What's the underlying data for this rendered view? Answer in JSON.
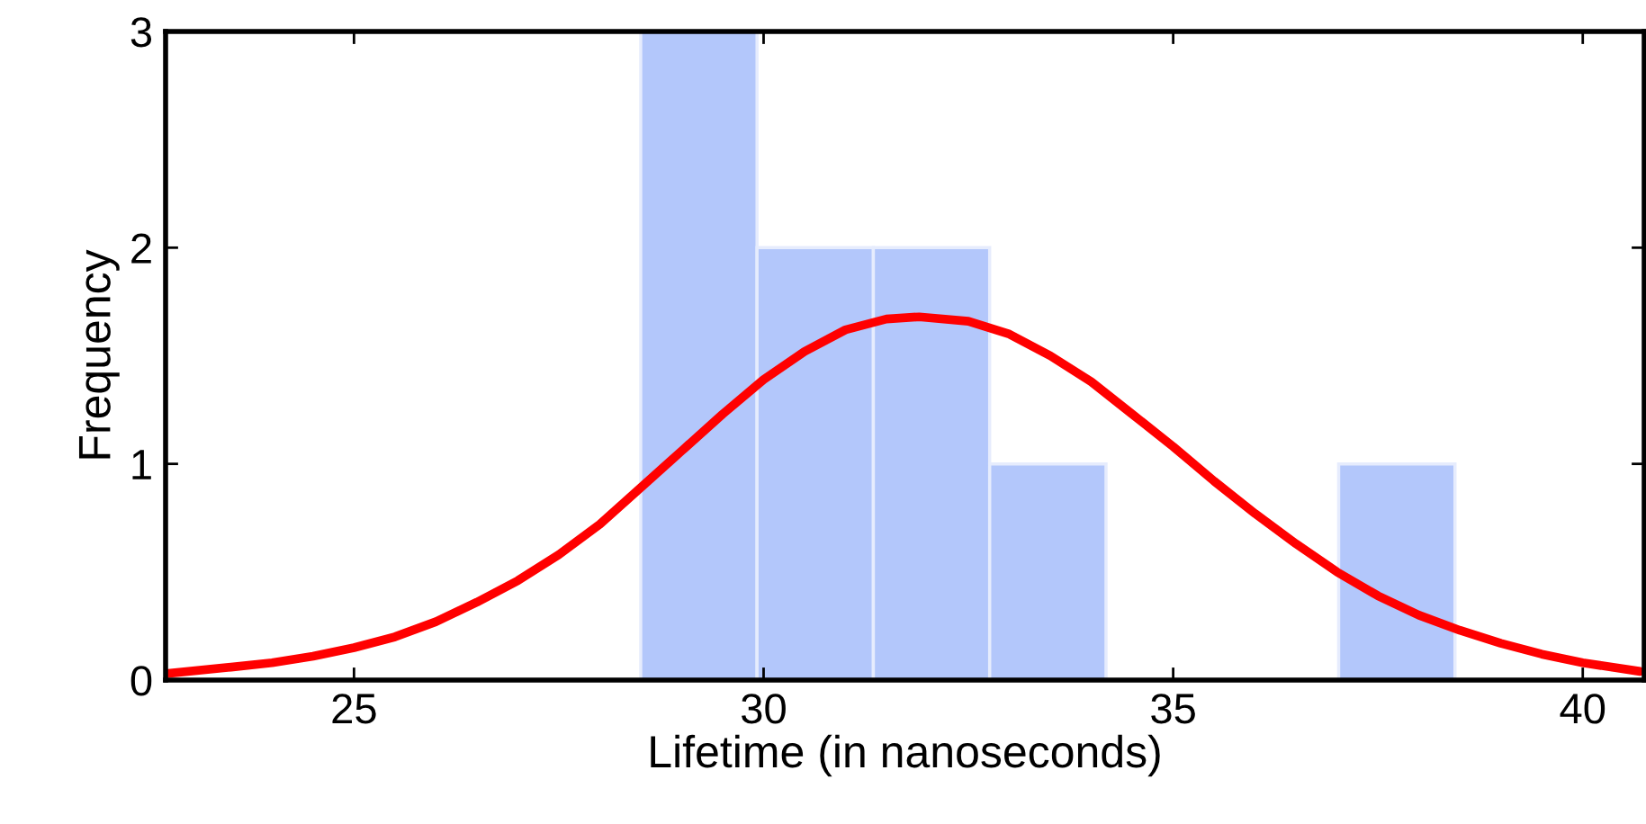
{
  "chart_data": {
    "type": "histogram",
    "xlabel": "Lifetime (in nanoseconds)",
    "ylabel": "Frequency",
    "bins": [
      28.5,
      29.92,
      31.34,
      32.76,
      34.18,
      35.6,
      37.02,
      38.44
    ],
    "values": [
      3,
      2,
      2,
      1,
      0,
      0,
      1
    ],
    "color": "#b3c7fb",
    "series": [
      {
        "type": "line",
        "color": "#ff0000",
        "x": [
          22.7,
          23.5,
          24,
          24.5,
          25,
          25.5,
          26,
          26.5,
          27,
          27.5,
          28,
          28.5,
          29,
          29.5,
          30,
          30.5,
          31,
          31.5,
          31.9,
          32.5,
          33,
          33.5,
          34,
          34.5,
          35,
          35.5,
          36,
          36.5,
          37,
          37.5,
          38,
          38.5,
          39,
          39.5,
          40,
          40.7
        ],
        "values": [
          0.03,
          0.06,
          0.08,
          0.11,
          0.15,
          0.2,
          0.27,
          0.36,
          0.46,
          0.58,
          0.72,
          0.89,
          1.06,
          1.23,
          1.39,
          1.52,
          1.62,
          1.67,
          1.68,
          1.66,
          1.6,
          1.5,
          1.38,
          1.23,
          1.08,
          0.92,
          0.77,
          0.63,
          0.5,
          0.39,
          0.3,
          0.23,
          0.17,
          0.12,
          0.08,
          0.04
        ]
      }
    ],
    "xlim": [
      22.7,
      40.75
    ],
    "xticks": [
      25,
      30,
      35,
      40
    ],
    "ylim": [
      0,
      3
    ],
    "yticks": [
      0,
      1,
      2,
      3
    ],
    "grid": false
  }
}
